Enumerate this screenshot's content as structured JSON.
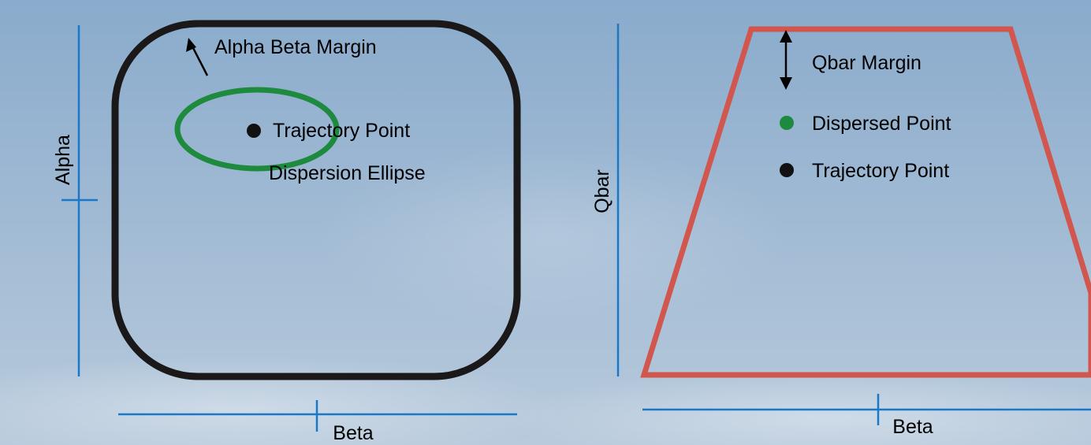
{
  "colors": {
    "sky_top": "#8aabcc",
    "sky_bottom": "#b8cadc",
    "axis": "#1a78c8",
    "alpha_beta_boundary": "#1a1818",
    "qbar_boundary": "#d0564e",
    "dispersion": "#1e8a3e",
    "trajectory_point": "#111111",
    "dispersed_point": "#1e8a3e"
  },
  "left_panel": {
    "x_axis_label": "Beta",
    "y_axis_label": "Alpha",
    "margin_label": "Alpha Beta Margin",
    "trajectory_label": "Trajectory Point",
    "dispersion_label": "Dispersion Ellipse"
  },
  "right_panel": {
    "x_axis_label": "Beta",
    "y_axis_label": "Qbar",
    "margin_label": "Qbar Margin",
    "dispersed_label": "Dispersed Point",
    "trajectory_label": "Trajectory Point"
  }
}
